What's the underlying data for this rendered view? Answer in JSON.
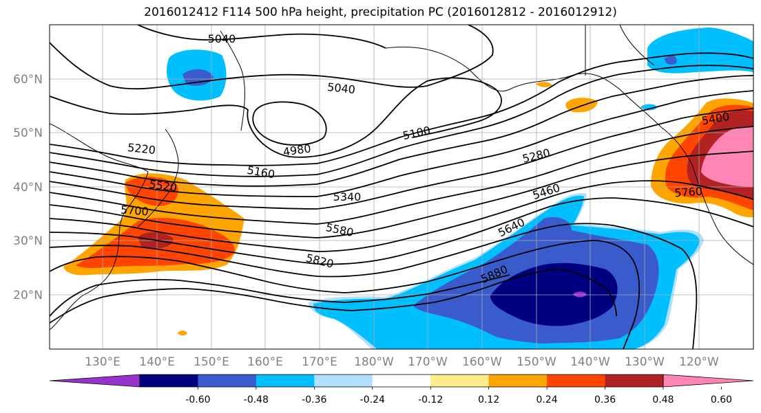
{
  "title": "2016012412 F114 500 hPa height, precipitation PC (2016012812 - 2016012912)",
  "map": {
    "lon_ticks": [
      "130°E",
      "140°E",
      "150°E",
      "160°E",
      "170°E",
      "180°W",
      "170°W",
      "160°W",
      "150°W",
      "140°W",
      "130°W",
      "120°W"
    ],
    "lat_ticks": [
      "60°N",
      "50°N",
      "40°N",
      "30°N",
      "20°N"
    ],
    "grid": true,
    "contour_color": "#000000",
    "height_labels": [
      "5040",
      "5040",
      "4980",
      "5100",
      "5220",
      "5160",
      "5280",
      "5400",
      "5520",
      "5340",
      "5460",
      "5700",
      "5580",
      "5640",
      "5760",
      "5820",
      "5880"
    ]
  },
  "colorbar": {
    "colors": [
      "#9932cc",
      "#000080",
      "#3a5bcc",
      "#00bfff",
      "#b0e0ff",
      "#ffffff",
      "#ffec8b",
      "#ffa500",
      "#ff4500",
      "#b22222",
      "#ff85b5"
    ],
    "tick_labels": [
      "-0.60",
      "-0.48",
      "-0.36",
      "-0.24",
      "-0.12",
      "0.12",
      "0.24",
      "0.36",
      "0.48",
      "0.60"
    ]
  }
}
